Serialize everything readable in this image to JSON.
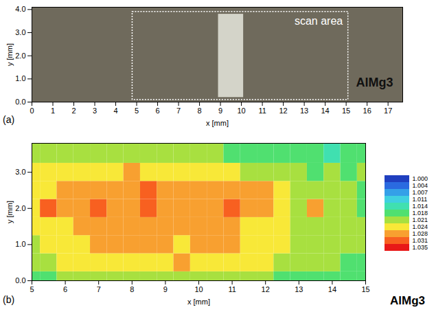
{
  "chart_data": [
    {
      "type": "image",
      "panel_label": "(a)",
      "color": "#6f6a5c",
      "xlabel": "x [mm]",
      "ylabel": "y [mm]",
      "xlim": [
        0,
        17.7
      ],
      "xticks": [
        0,
        1,
        2,
        3,
        4,
        5,
        6,
        7,
        8,
        9,
        10,
        11,
        12,
        13,
        14,
        15,
        16,
        17
      ],
      "ylim": [
        0,
        4.1
      ],
      "yticks": [
        0,
        1,
        2,
        3,
        4
      ],
      "scan_area": {
        "label": "scan area",
        "x": [
          4.8,
          15.1
        ],
        "y": [
          0.1,
          3.9
        ]
      },
      "weld": {
        "x": [
          8.9,
          10.1
        ],
        "y": [
          0.2,
          3.8
        ]
      },
      "sample_label": "AlMg3"
    },
    {
      "type": "heatmap",
      "panel_label": "(b)",
      "sample_label": "AlMg3",
      "xlabel": "x [mm]",
      "ylabel": "y [mm]",
      "xlim": [
        5,
        15
      ],
      "xticks": [
        5,
        6,
        7,
        8,
        9,
        10,
        11,
        12,
        13,
        14,
        15
      ],
      "ylim": [
        0,
        3.8
      ],
      "yticks": [
        0,
        1,
        2,
        3
      ],
      "x": [
        5,
        5.5,
        6,
        6.5,
        7,
        7.5,
        8,
        8.5,
        9,
        9.5,
        10,
        10.5,
        11,
        11.5,
        12,
        12.5,
        13,
        13.5,
        14,
        14.5,
        15
      ],
      "y": [
        0,
        0.5,
        1,
        1.5,
        2,
        2.5,
        3,
        3.5
      ],
      "values": [
        [
          1.019,
          1.02,
          1.021,
          1.021,
          1.022,
          1.022,
          1.022,
          1.022,
          1.022,
          1.023,
          1.022,
          1.022,
          1.022,
          1.021,
          1.021,
          1.02,
          1.02,
          1.019,
          1.019,
          1.019,
          1.019
        ],
        [
          1.022,
          1.023,
          1.024,
          1.024,
          1.025,
          1.025,
          1.025,
          1.025,
          1.026,
          1.03,
          1.026,
          1.025,
          1.025,
          1.024,
          1.024,
          1.023,
          1.022,
          1.021,
          1.021,
          1.02,
          1.02
        ],
        [
          1.023,
          1.024,
          1.025,
          1.027,
          1.028,
          1.028,
          1.028,
          1.028,
          1.028,
          1.027,
          1.028,
          1.029,
          1.028,
          1.027,
          1.025,
          1.024,
          1.022,
          1.022,
          1.022,
          1.021,
          1.021
        ],
        [
          1.024,
          1.025,
          1.027,
          1.029,
          1.03,
          1.03,
          1.029,
          1.029,
          1.03,
          1.029,
          1.028,
          1.029,
          1.028,
          1.027,
          1.025,
          1.024,
          1.023,
          1.022,
          1.021,
          1.021,
          1.021
        ],
        [
          1.025,
          1.032,
          1.028,
          1.03,
          1.033,
          1.029,
          1.028,
          1.031,
          1.029,
          1.029,
          1.028,
          1.03,
          1.032,
          1.029,
          1.028,
          1.024,
          1.022,
          1.028,
          1.021,
          1.021,
          1.02
        ],
        [
          1.024,
          1.026,
          1.028,
          1.029,
          1.029,
          1.029,
          1.029,
          1.031,
          1.029,
          1.028,
          1.028,
          1.029,
          1.029,
          1.03,
          1.029,
          1.025,
          1.022,
          1.021,
          1.022,
          1.021,
          1.02
        ],
        [
          1.024,
          1.027,
          1.026,
          1.027,
          1.027,
          1.027,
          1.028,
          1.027,
          1.027,
          1.026,
          1.025,
          1.024,
          1.024,
          1.023,
          1.023,
          1.022,
          1.021,
          1.02,
          1.021,
          1.02,
          1.021
        ],
        [
          1.022,
          1.023,
          1.023,
          1.023,
          1.023,
          1.023,
          1.023,
          1.022,
          1.022,
          1.022,
          1.021,
          1.021,
          1.02,
          1.02,
          1.019,
          1.019,
          1.018,
          1.018,
          1.017,
          1.018,
          1.018
        ]
      ],
      "colorbar": {
        "ticks": [
          {
            "value": 1.0,
            "label": "1.000"
          },
          {
            "value": 1.004,
            "label": "1.004"
          },
          {
            "value": 1.007,
            "label": "1.007"
          },
          {
            "value": 1.011,
            "label": "1.011"
          },
          {
            "value": 1.014,
            "label": "1.014"
          },
          {
            "value": 1.018,
            "label": "1.018"
          },
          {
            "value": 1.021,
            "label": "1.021"
          },
          {
            "value": 1.024,
            "label": "1.024"
          },
          {
            "value": 1.028,
            "label": "1.028"
          },
          {
            "value": 1.031,
            "label": "1.031"
          },
          {
            "value": 1.035,
            "label": "1.035"
          }
        ],
        "colors": [
          "#1f3fbf",
          "#2a6ae0",
          "#34a0e8",
          "#40d0e0",
          "#40e0b0",
          "#50e070",
          "#a8e040",
          "#f8e838",
          "#f8a030",
          "#f86020",
          "#e81818"
        ]
      }
    }
  ]
}
